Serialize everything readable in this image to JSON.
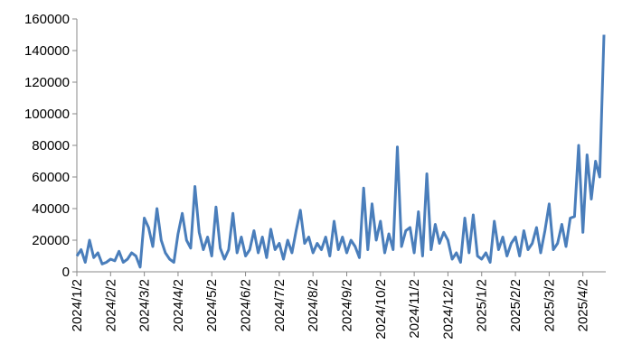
{
  "chart_data": {
    "type": "line",
    "categories": [
      "2024/1/2",
      null,
      null,
      null,
      null,
      null,
      null,
      null,
      "2024/2/2",
      null,
      null,
      null,
      null,
      null,
      null,
      null,
      "2024/3/2",
      null,
      null,
      null,
      null,
      null,
      null,
      null,
      "2024/4/2",
      null,
      null,
      null,
      null,
      null,
      null,
      null,
      "2024/5/2",
      null,
      null,
      null,
      null,
      null,
      null,
      null,
      "2024/6/2",
      null,
      null,
      null,
      null,
      null,
      null,
      null,
      "2024/7/2",
      null,
      null,
      null,
      null,
      null,
      null,
      null,
      "2024/8/2",
      null,
      null,
      null,
      null,
      null,
      null,
      null,
      "2024/9/2",
      null,
      null,
      null,
      null,
      null,
      null,
      null,
      "2024/10/2",
      null,
      null,
      null,
      null,
      null,
      null,
      null,
      "2024/11/2",
      null,
      null,
      null,
      null,
      null,
      null,
      null,
      "2024/12/2",
      null,
      null,
      null,
      null,
      null,
      null,
      null,
      "2025/1/2",
      null,
      null,
      null,
      null,
      null,
      null,
      null,
      "2025/2/2",
      null,
      null,
      null,
      null,
      null,
      null,
      null,
      "2025/3/2",
      null,
      null,
      null,
      null,
      null,
      null,
      null,
      "2025/4/2",
      null,
      null,
      null,
      null,
      null
    ],
    "series": [
      {
        "color": "#4a7ebb",
        "values": [
          10000,
          14000,
          6000,
          20000,
          9000,
          12000,
          5000,
          6000,
          8000,
          7000,
          13000,
          6000,
          8000,
          12000,
          10000,
          3000,
          34000,
          28000,
          16000,
          40000,
          20000,
          12000,
          8000,
          6000,
          24000,
          37000,
          20000,
          15000,
          54000,
          25000,
          14000,
          22000,
          10000,
          41000,
          15000,
          8000,
          14000,
          37000,
          12000,
          22000,
          10000,
          14000,
          26000,
          12000,
          22000,
          9000,
          27000,
          14000,
          18000,
          8000,
          20000,
          12000,
          26000,
          39000,
          18000,
          22000,
          12000,
          18000,
          14000,
          22000,
          10000,
          32000,
          14000,
          22000,
          12000,
          20000,
          16000,
          9000,
          53000,
          14000,
          43000,
          20000,
          32000,
          12000,
          24000,
          14000,
          79000,
          16000,
          26000,
          28000,
          12000,
          38000,
          10000,
          62000,
          14000,
          30000,
          18000,
          25000,
          20000,
          8000,
          12000,
          6000,
          34000,
          12000,
          36000,
          10000,
          8000,
          12000,
          6000,
          32000,
          14000,
          22000,
          10000,
          18000,
          22000,
          10000,
          26000,
          14000,
          18000,
          28000,
          12000,
          26000,
          43000,
          14000,
          18000,
          30000,
          16000,
          34000,
          35000,
          80000,
          25000,
          74000,
          46000,
          70000,
          60000,
          150000
        ]
      }
    ],
    "ylim": [
      0,
      160000
    ],
    "yticks": [
      0,
      20000,
      40000,
      60000,
      80000,
      100000,
      120000,
      140000,
      160000
    ],
    "grid": false
  }
}
